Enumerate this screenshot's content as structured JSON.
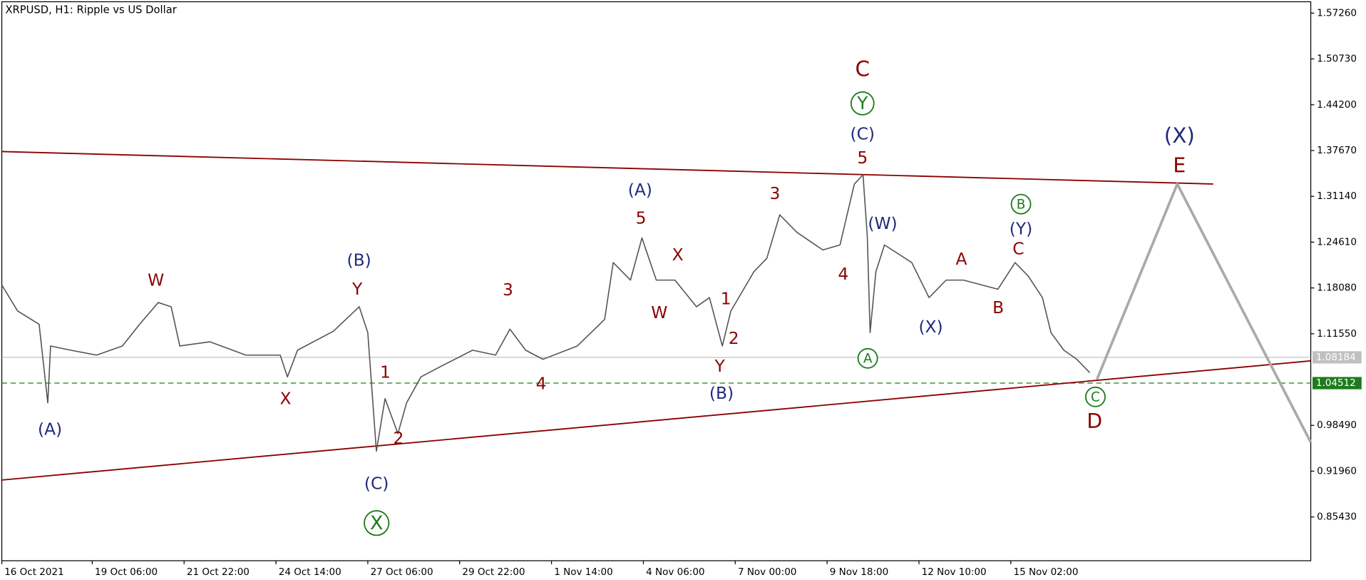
{
  "chart_data": {
    "type": "line",
    "title": "XRPUSD, H1:  Ripple vs US Dollar",
    "color": "#555555",
    "x": [
      0,
      11,
      26,
      32,
      34,
      48,
      66,
      84,
      96,
      109,
      118,
      124,
      145,
      170,
      194,
      199,
      206,
      231,
      249,
      255,
      261,
      267,
      276,
      282,
      292,
      304,
      328,
      344,
      354,
      365,
      377,
      401,
      420,
      426,
      438,
      446,
      456,
      469,
      484,
      493,
      502,
      508,
      524,
      533,
      542,
      554,
      572,
      584,
      594,
      600,
      603,
      605,
      609,
      615,
      634,
      646,
      658,
      670,
      694,
      706,
      715,
      725,
      731,
      740,
      749,
      758
    ],
    "values": [
      1.185,
      1.148,
      1.129,
      1.017,
      1.098,
      1.092,
      1.085,
      1.098,
      1.129,
      1.16,
      1.154,
      1.098,
      1.104,
      1.085,
      1.085,
      1.054,
      1.092,
      1.119,
      1.154,
      1.117,
      0.948,
      1.023,
      0.973,
      1.017,
      1.054,
      1.067,
      1.092,
      1.085,
      1.122,
      1.092,
      1.079,
      1.098,
      1.136,
      1.217,
      1.192,
      1.252,
      1.192,
      1.192,
      1.154,
      1.167,
      1.098,
      1.148,
      1.204,
      1.223,
      1.285,
      1.26,
      1.235,
      1.242,
      1.329,
      1.342,
      1.254,
      1.117,
      1.204,
      1.242,
      1.217,
      1.167,
      1.192,
      1.192,
      1.179,
      1.217,
      1.198,
      1.167,
      1.117,
      1.092,
      1.079,
      1.06
    ],
    "xlim": [
      0,
      912
    ],
    "ylim": [
      0.7919,
      1.5888
    ],
    "xticks": [
      {
        "value": 0,
        "label": "16 Oct 2021"
      },
      {
        "value": 63,
        "label": "19 Oct 06:00"
      },
      {
        "value": 127,
        "label": "21 Oct 22:00"
      },
      {
        "value": 191,
        "label": "24 Oct 14:00"
      },
      {
        "value": 255,
        "label": "27 Oct 06:00"
      },
      {
        "value": 319,
        "label": "29 Oct 22:00"
      },
      {
        "value": 383,
        "label": "1 Nov 14:00"
      },
      {
        "value": 447,
        "label": "4 Nov 06:00"
      },
      {
        "value": 511,
        "label": "7 Nov 00:00"
      },
      {
        "value": 575,
        "label": "9 Nov 18:00"
      },
      {
        "value": 639,
        "label": "12 Nov 10:00"
      },
      {
        "value": 703,
        "label": "15 Nov 02:00"
      }
    ],
    "yticks": [
      {
        "value": 1.5726,
        "label": "1.57260"
      },
      {
        "value": 1.5073,
        "label": "1.50730"
      },
      {
        "value": 1.442,
        "label": "1.44200"
      },
      {
        "value": 1.3767,
        "label": "1.37670"
      },
      {
        "value": 1.3114,
        "label": "1.31140"
      },
      {
        "value": 1.2461,
        "label": "1.24610"
      },
      {
        "value": 1.1808,
        "label": "1.18080"
      },
      {
        "value": 1.1155,
        "label": "1.11550"
      },
      {
        "value": 0.9849,
        "label": "0.98490"
      },
      {
        "value": 0.9196,
        "label": "0.91960"
      },
      {
        "value": 0.8543,
        "label": "0.85430"
      }
    ],
    "hlines": [
      {
        "value": 1.08184,
        "color": "#c0c0c0",
        "dashed": false
      },
      {
        "value": 1.04512,
        "color": "#1e7b1e",
        "dashed": true
      }
    ],
    "trendlines": [
      {
        "x": [
          0,
          844
        ],
        "values": [
          1.3752,
          1.329
        ],
        "color": "#8b0000"
      },
      {
        "x": [
          0,
          912
        ],
        "values": [
          0.9069,
          1.0768
        ],
        "color": "#8b0000"
      },
      {
        "x": [
          763,
          819,
          912
        ],
        "values": [
          1.0505,
          1.329,
          0.9607
        ],
        "color": "#aaaaaa"
      }
    ],
    "annotations": [
      {
        "text": "(A)",
        "color": "#1f2a7a"
      },
      {
        "text": "W",
        "color": "#8b0000"
      },
      {
        "text": "(B)",
        "color": "#1f2a7a"
      },
      {
        "text": "Y",
        "color": "#8b0000"
      },
      {
        "text": "X",
        "color": "#8b0000"
      },
      {
        "text": "1",
        "color": "#8b0000"
      },
      {
        "text": "2",
        "color": "#8b0000"
      },
      {
        "text": "(C)",
        "color": "#1f2a7a"
      },
      {
        "text": "X",
        "color": "#1e7b1e"
      },
      {
        "text": "3",
        "color": "#8b0000"
      },
      {
        "text": "4",
        "color": "#8b0000"
      },
      {
        "text": "(A)",
        "color": "#1f2a7a"
      },
      {
        "text": "5",
        "color": "#8b0000"
      },
      {
        "text": "X",
        "color": "#8b0000"
      },
      {
        "text": "W",
        "color": "#8b0000"
      },
      {
        "text": "1",
        "color": "#8b0000"
      },
      {
        "text": "2",
        "color": "#8b0000"
      },
      {
        "text": "Y",
        "color": "#8b0000"
      },
      {
        "text": "(B)",
        "color": "#1f2a7a"
      },
      {
        "text": "3",
        "color": "#8b0000"
      },
      {
        "text": "4",
        "color": "#8b0000"
      },
      {
        "text": "5",
        "color": "#8b0000"
      },
      {
        "text": "(C)",
        "color": "#1f2a7a"
      },
      {
        "text": "Y",
        "color": "#1e7b1e"
      },
      {
        "text": "C",
        "color": "#8b0000"
      },
      {
        "text": "(W)",
        "color": "#1f2a7a"
      },
      {
        "text": "A",
        "color": "#1e7b1e"
      },
      {
        "text": "(X)",
        "color": "#1f2a7a"
      },
      {
        "text": "A",
        "color": "#8b0000"
      },
      {
        "text": "B",
        "color": "#8b0000"
      },
      {
        "text": "C",
        "color": "#8b0000"
      },
      {
        "text": "(Y)",
        "color": "#1f2a7a"
      },
      {
        "text": "B",
        "color": "#1e7b1e"
      },
      {
        "text": "C",
        "color": "#1e7b1e"
      },
      {
        "text": "D",
        "color": "#8b0000"
      },
      {
        "text": "(X)",
        "color": "#1f2a7a"
      },
      {
        "text": "E",
        "color": "#8b0000"
      }
    ]
  }
}
